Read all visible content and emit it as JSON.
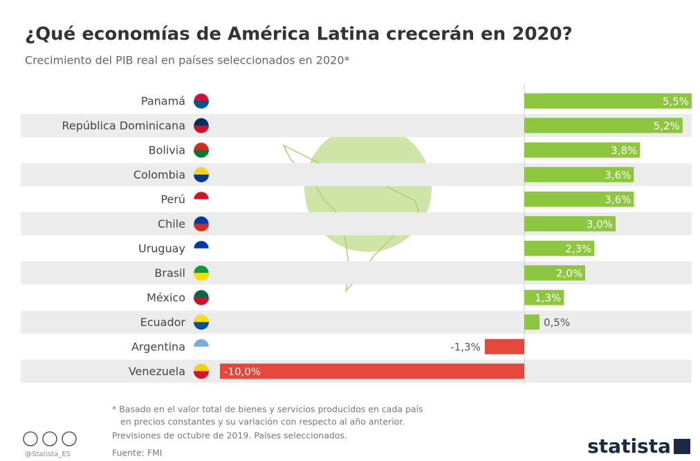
{
  "chart_data": {
    "type": "bar",
    "title": "¿Qué economías de América Latina crecerán en 2020?",
    "subtitle": "Crecimiento del PIB real en países seleccionados en 2020*",
    "categories": [
      "Panamá",
      "República Dominicana",
      "Bolivia",
      "Colombia",
      "Perú",
      "Chile",
      "Uruguay",
      "Brasil",
      "México",
      "Ecuador",
      "Argentina",
      "Venezuela"
    ],
    "values": [
      5.5,
      5.2,
      3.8,
      3.6,
      3.6,
      3.0,
      2.3,
      2.0,
      1.3,
      0.5,
      -1.3,
      -10.0
    ],
    "value_labels": [
      "5,5%",
      "5,2%",
      "3,8%",
      "3,6%",
      "3,6%",
      "3,0%",
      "2,3%",
      "2,0%",
      "1,3%",
      "0,5%",
      "-1,3%",
      "-10,0%"
    ],
    "positive_color": "#8dc63f",
    "negative_color": "#e5483a",
    "xlim": [
      -10,
      5.5
    ],
    "notes": [
      "* Basado en el valor total de bienes y servicios producidos en cada país",
      "en precios constantes y su variación con respecto al año anterior.",
      "Previsiones de octubre de 2019. Países seleccionados.",
      "Fuente: FMI"
    ],
    "handle": "@Statista_ES",
    "brand": "statista"
  }
}
